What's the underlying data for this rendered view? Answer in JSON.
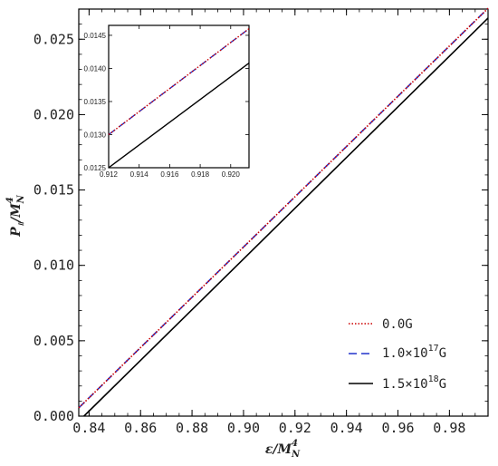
{
  "chart_data": {
    "type": "line",
    "title": "",
    "xlabel": {
      "base": "ε/M",
      "sub": "N",
      "sup": "4"
    },
    "ylabel": {
      "base": "P",
      "sub": "॥",
      "mid": "/M",
      "sub2": "N",
      "sup": "4"
    },
    "xlim": [
      0.836,
      0.995
    ],
    "ylim": [
      0.0,
      0.027
    ],
    "xticks": [
      "0.84",
      "0.86",
      "0.88",
      "0.90",
      "0.92",
      "0.94",
      "0.96",
      "0.98"
    ],
    "xtick_values": [
      0.84,
      0.86,
      0.88,
      0.9,
      0.92,
      0.94,
      0.96,
      0.98
    ],
    "yticks": [
      "0.000",
      "0.005",
      "0.010",
      "0.015",
      "0.020",
      "0.025"
    ],
    "ytick_values": [
      0.0,
      0.005,
      0.01,
      0.015,
      0.02,
      0.025
    ],
    "legend_position": "bottom-right",
    "series": [
      {
        "name": "0.0G",
        "name_parts": {
          "pre": "0.0G",
          "sup": "",
          "post": ""
        },
        "color": "#cc0000",
        "dash": "dotted",
        "x": [
          0.836,
          0.995
        ],
        "y": [
          0.00055,
          0.02705
        ]
      },
      {
        "name": "1.0×10¹⁷G",
        "name_parts": {
          "pre": "1.0×10",
          "sup": "17",
          "post": "G"
        },
        "color": "#2233cc",
        "dash": "dashed",
        "x": [
          0.836,
          0.995
        ],
        "y": [
          0.00055,
          0.02705
        ]
      },
      {
        "name": "1.5×10¹⁸G",
        "name_parts": {
          "pre": "1.5×10",
          "sup": "18",
          "post": "G"
        },
        "color": "#000000",
        "dash": "solid",
        "x": [
          0.838,
          0.995
        ],
        "y": [
          0.0,
          0.0264
        ]
      }
    ],
    "inset": {
      "xlim": [
        0.912,
        0.9212
      ],
      "ylim": [
        0.0125,
        0.01465
      ],
      "xticks": [
        "0.912",
        "0.914",
        "0.916",
        "0.918",
        "0.920"
      ],
      "xtick_values": [
        0.912,
        0.914,
        0.916,
        0.918,
        0.92
      ],
      "yticks": [
        "0.0125",
        "0.0130",
        "0.0135",
        "0.0140",
        "0.0145"
      ],
      "ytick_values": [
        0.0125,
        0.013,
        0.0135,
        0.014,
        0.0145
      ],
      "series": [
        {
          "color": "#cc0000",
          "dash": "dotted",
          "x": [
            0.912,
            0.9212
          ],
          "y": [
            0.013,
            0.0146
          ]
        },
        {
          "color": "#2233cc",
          "dash": "dashed",
          "x": [
            0.912,
            0.9212
          ],
          "y": [
            0.013,
            0.0146
          ]
        },
        {
          "color": "#000000",
          "dash": "solid",
          "x": [
            0.912,
            0.9212
          ],
          "y": [
            0.0125,
            0.01408
          ]
        }
      ]
    }
  }
}
